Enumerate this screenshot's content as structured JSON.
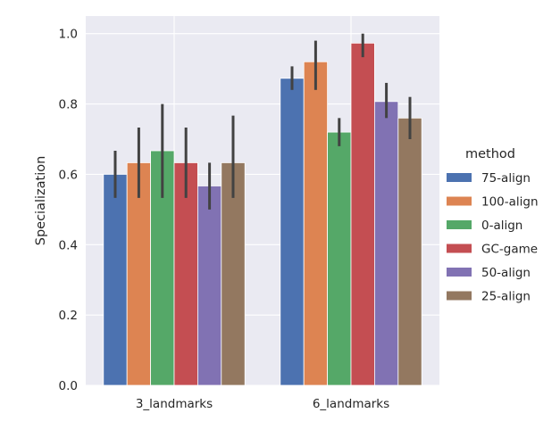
{
  "chart_data": {
    "type": "bar",
    "categories": [
      "3_landmarks",
      "6_landmarks"
    ],
    "ylabel": "Specialization",
    "xlabel": "",
    "ylim": [
      0,
      1.05
    ],
    "yticks": [
      "0.0",
      "0.2",
      "0.4",
      "0.6",
      "0.8",
      "1.0"
    ],
    "grid": true,
    "legend": {
      "title": "method",
      "placement": "right"
    },
    "series": [
      {
        "name": "75-align",
        "color": "#4c72b0",
        "values": [
          0.6,
          0.873
        ],
        "ci": [
          [
            0.533,
            0.667
          ],
          [
            0.84,
            0.907
          ]
        ]
      },
      {
        "name": "100-align",
        "color": "#dd8452",
        "values": [
          0.633,
          0.92
        ],
        "ci": [
          [
            0.533,
            0.733
          ],
          [
            0.84,
            0.98
          ]
        ]
      },
      {
        "name": "0-align",
        "color": "#55a868",
        "values": [
          0.667,
          0.72
        ],
        "ci": [
          [
            0.533,
            0.8
          ],
          [
            0.68,
            0.76
          ]
        ]
      },
      {
        "name": "GC-game",
        "color": "#c44e52",
        "values": [
          0.633,
          0.973
        ],
        "ci": [
          [
            0.533,
            0.733
          ],
          [
            0.933,
            1.0
          ]
        ]
      },
      {
        "name": "50-align",
        "color": "#8172b3",
        "values": [
          0.567,
          0.807
        ],
        "ci": [
          [
            0.5,
            0.633
          ],
          [
            0.76,
            0.86
          ]
        ]
      },
      {
        "name": "25-align",
        "color": "#937860",
        "values": [
          0.633,
          0.76
        ],
        "ci": [
          [
            0.533,
            0.767
          ],
          [
            0.7,
            0.82
          ]
        ]
      }
    ]
  }
}
